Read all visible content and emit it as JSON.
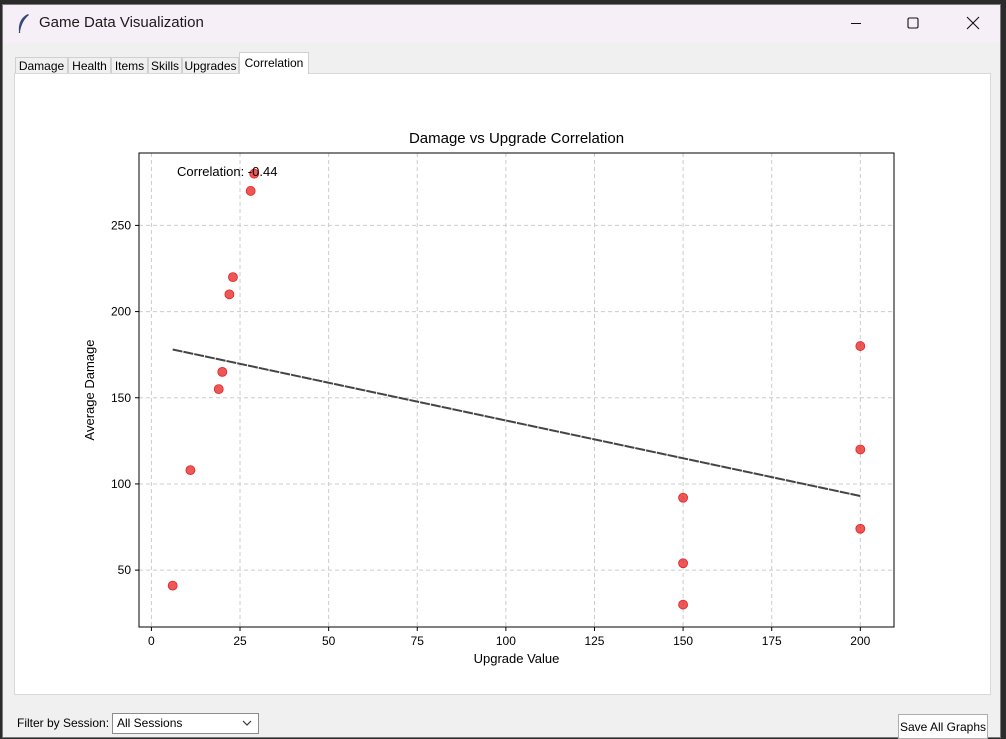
{
  "window": {
    "title": "Game Data Visualization",
    "icon": "feather-icon"
  },
  "tabs": [
    {
      "label": "Damage",
      "active": false
    },
    {
      "label": "Health",
      "active": false
    },
    {
      "label": "Items",
      "active": false
    },
    {
      "label": "Skills",
      "active": false
    },
    {
      "label": "Upgrades",
      "active": false
    },
    {
      "label": "Correlation",
      "active": true
    }
  ],
  "chart_data": {
    "type": "scatter",
    "title": "Damage vs Upgrade Correlation",
    "xlabel": "Upgrade Value",
    "ylabel": "Average Damage",
    "xlim": [
      -3.5,
      209.5
    ],
    "ylim": [
      17,
      292
    ],
    "xticks": [
      0,
      25,
      50,
      75,
      100,
      125,
      150,
      175,
      200
    ],
    "yticks": [
      50,
      100,
      150,
      200,
      250
    ],
    "grid": true,
    "annotation": "Correlation: -0.44",
    "point_color": "#e52020",
    "trend_color": "#444444",
    "points": [
      {
        "x": 6,
        "y": 41
      },
      {
        "x": 11,
        "y": 108
      },
      {
        "x": 19,
        "y": 155
      },
      {
        "x": 20,
        "y": 165
      },
      {
        "x": 22,
        "y": 210
      },
      {
        "x": 23,
        "y": 220
      },
      {
        "x": 28,
        "y": 270
      },
      {
        "x": 29,
        "y": 280
      },
      {
        "x": 150,
        "y": 92
      },
      {
        "x": 150,
        "y": 54
      },
      {
        "x": 150,
        "y": 30
      },
      {
        "x": 200,
        "y": 180
      },
      {
        "x": 200,
        "y": 120
      },
      {
        "x": 200,
        "y": 74
      }
    ],
    "trend_line": {
      "x": [
        6,
        200
      ],
      "y": [
        178,
        93
      ]
    }
  },
  "footer": {
    "filter_label": "Filter by Session:",
    "session_value": "All Sessions",
    "save_label": "Save All Graphs"
  }
}
